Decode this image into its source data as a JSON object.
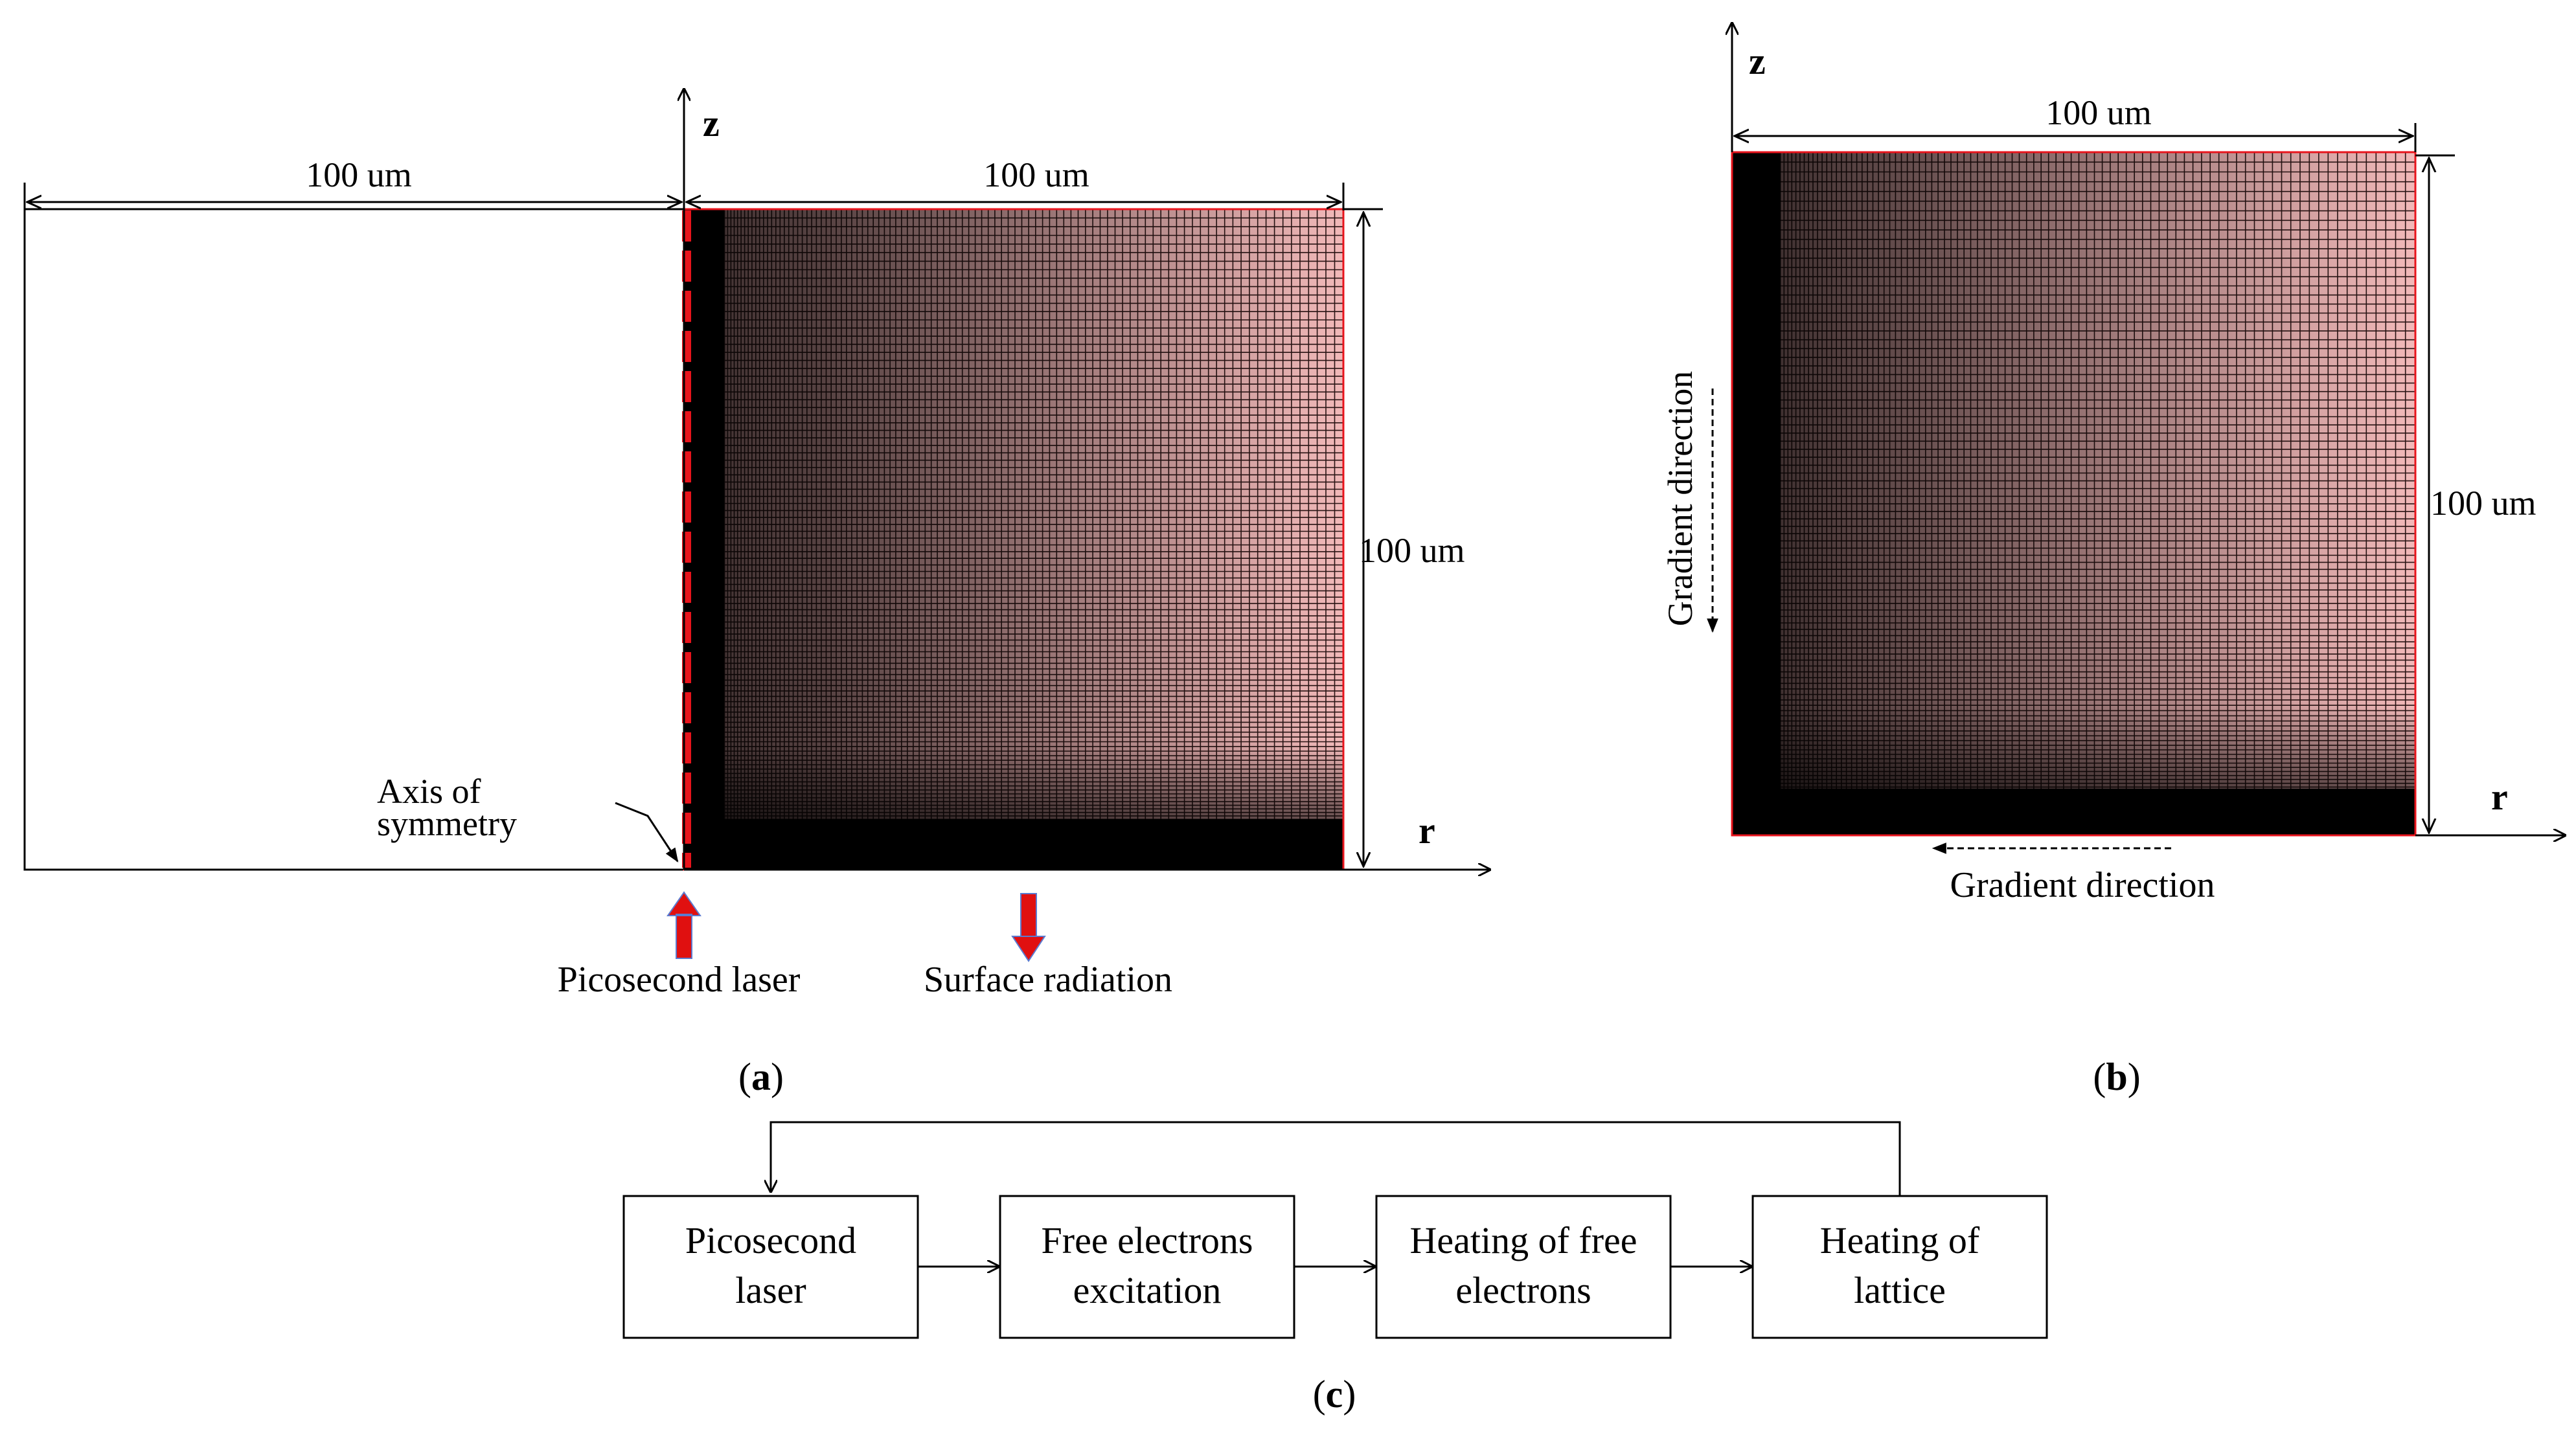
{
  "panel_a": {
    "z_label": "z",
    "r_label": "r",
    "dim_top_left": "100 um",
    "dim_top_right": "100 um",
    "dim_right": "100 um",
    "axis_label_line1": "Axis of",
    "axis_label_line2": "symmetry",
    "laser_label": "Picosecond laser",
    "radiation_label": "Surface radiation",
    "caption_open": "(",
    "caption_letter": "a",
    "caption_close": ")"
  },
  "panel_b": {
    "z_label": "z",
    "r_label": "r",
    "dim_top": "100 um",
    "dim_right": "100 um",
    "gradient_vertical": "Gradient direction",
    "gradient_horizontal": "Gradient direction",
    "caption_open": "(",
    "caption_letter": "b",
    "caption_close": ")"
  },
  "panel_c": {
    "boxes": [
      {
        "line1": "Picosecond",
        "line2": "laser"
      },
      {
        "line1": "Free electrons",
        "line2": "excitation"
      },
      {
        "line1": "Heating of free",
        "line2": "electrons"
      },
      {
        "line1": "Heating of",
        "line2": "lattice"
      }
    ],
    "caption_open": "(",
    "caption_letter": "c",
    "caption_close": ")"
  },
  "colors": {
    "mesh_fill": "#f2b9b9",
    "mesh_line": "#2a1414",
    "boundary_red": "#e8141c",
    "arrow_red": "#e01010"
  }
}
